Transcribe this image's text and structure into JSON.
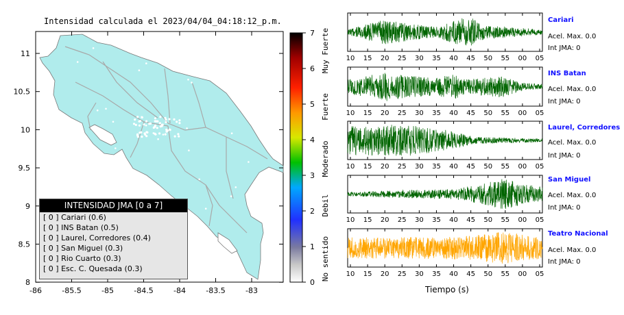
{
  "map": {
    "title": "Intensidad calculada el 2023/04/04_04:18:12_p.m.",
    "xticks": [
      "-86",
      "-85.5",
      "-85",
      "-84.5",
      "-84",
      "-83.5",
      "-83"
    ],
    "yticks": [
      "11",
      "10.5",
      "10",
      "9.5",
      "9",
      "8.5",
      "8"
    ],
    "land_color": "#b0ecec"
  },
  "legend": {
    "header": "INTENSIDAD JMA [0 a 7]",
    "items": [
      "[ 0 ]  Cariari (0.6)",
      "[ 0 ]  INS Batan (0.5)",
      "[ 0 ]  Laurel, Corredores (0.4)",
      "[ 0 ]  San Miguel (0.3)",
      "[ 0 ]  Rio Cuarto (0.3)",
      "[ 0 ]  Esc. C. Quesada (0.3)"
    ]
  },
  "colorbar": {
    "ticks": [
      "7",
      "6",
      "5",
      "4",
      "3",
      "2",
      "1",
      "0"
    ],
    "labels": [
      "Muy Fuerte",
      "Fuerte",
      "Moderado",
      "Debil",
      "No sentido"
    ]
  },
  "stations": [
    {
      "name": "Cariari",
      "acel": "Acel. Max. 0.0",
      "jma": "Int JMA: 0",
      "color": "#006400"
    },
    {
      "name": "INS Batan",
      "acel": "Acel. Max. 0.0",
      "jma": "Int JMA: 0",
      "color": "#006400"
    },
    {
      "name": "Laurel, Corredores",
      "acel": "Acel. Max. 0.0",
      "jma": "Int JMA: 0",
      "color": "#006400"
    },
    {
      "name": "San Miguel",
      "acel": "Acel. Max. 0.0",
      "jma": "Int JMA: 0",
      "color": "#006400"
    },
    {
      "name": "Teatro Nacional",
      "acel": "Acel. Max. 0.0",
      "jma": "Int JMA: 0",
      "color": "#ffa500"
    }
  ],
  "time_ticks": [
    "10",
    "15",
    "20",
    "25",
    "30",
    "35",
    "40",
    "45",
    "50",
    "55",
    "00",
    "05"
  ],
  "xlabel": "Tiempo (s)"
}
